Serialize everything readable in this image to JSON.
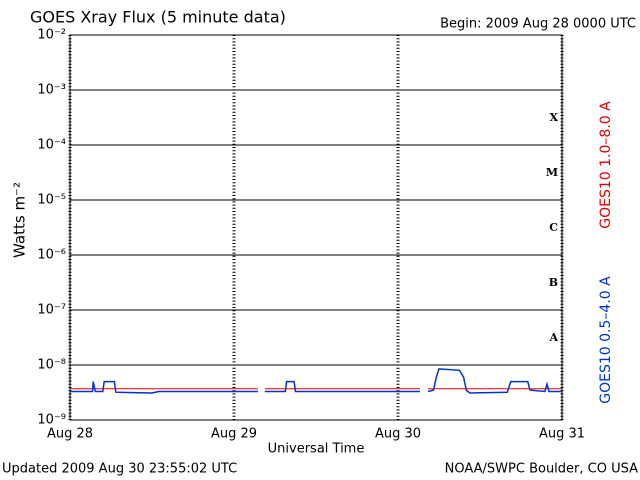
{
  "chart_data": {
    "type": "line",
    "title": "GOES Xray Flux (5 minute data)",
    "subtitle": "Begin:  2009 Aug 28 0000 UTC",
    "x_label": "Universal Time",
    "y_label": "Watts m⁻²",
    "footer_left": "Updated 2009 Aug 30 23:55:02 UTC",
    "footer_right": "NOAA/SWPC Boulder, CO USA",
    "log_y": true,
    "grid": true,
    "xlim": [
      0,
      72
    ],
    "xticks": [
      {
        "value": 0,
        "label": "Aug 28"
      },
      {
        "value": 24,
        "label": "Aug 29"
      },
      {
        "value": 48,
        "label": "Aug 30"
      },
      {
        "value": 72,
        "label": "Aug 31"
      }
    ],
    "ylim": [
      1e-09,
      0.01
    ],
    "yticks": [
      {
        "value": 1e-09,
        "label": "10⁻⁹"
      },
      {
        "value": 1e-08,
        "label": "10⁻⁸"
      },
      {
        "value": 1e-07,
        "label": "10⁻⁷"
      },
      {
        "value": 1e-06,
        "label": "10⁻⁶"
      },
      {
        "value": 1e-05,
        "label": "10⁻⁵"
      },
      {
        "value": 0.0001,
        "label": "10⁻⁴"
      },
      {
        "value": 0.001,
        "label": "10⁻³"
      },
      {
        "value": 0.01,
        "label": "10⁻²"
      }
    ],
    "flare_classes": [
      {
        "value": 1e-08,
        "label": "A"
      },
      {
        "value": 1e-07,
        "label": "B"
      },
      {
        "value": 1e-06,
        "label": "C"
      },
      {
        "value": 1e-05,
        "label": "M"
      },
      {
        "value": 0.0001,
        "label": "X"
      }
    ],
    "series": [
      {
        "name": "GOES10 1.0–8.0 A",
        "color": "#dd0000",
        "x": [
          0,
          27.5,
          28,
          28.5,
          51.2,
          51.8,
          52.4,
          72
        ],
        "values": [
          3.7e-09,
          3.7e-09,
          null,
          3.7e-09,
          3.7e-09,
          null,
          3.7e-09,
          3.7e-09
        ]
      },
      {
        "name": "GOES10 0.5–4.0 A",
        "color": "#0033cc",
        "x": [
          0,
          3.3,
          3.4,
          3.7,
          4.8,
          5.0,
          6.5,
          6.7,
          12,
          13,
          27.5,
          28,
          28.5,
          31.5,
          31.7,
          32.8,
          33,
          51.2,
          51.8,
          52.4,
          53.2,
          53.6,
          54,
          57,
          57.6,
          58,
          58.5,
          64,
          64.5,
          67,
          67.3,
          69.5,
          69.8,
          70.1,
          72
        ],
        "values": [
          3.3e-09,
          3.3e-09,
          5e-09,
          3.3e-09,
          3.3e-09,
          5e-09,
          5e-09,
          3.2e-09,
          3.1e-09,
          3.3e-09,
          3.3e-09,
          null,
          3.3e-09,
          3.3e-09,
          5e-09,
          5e-09,
          3.3e-09,
          3.3e-09,
          null,
          3.3e-09,
          3.5e-09,
          6e-09,
          8.5e-09,
          8e-09,
          6e-09,
          3.5e-09,
          3.1e-09,
          3.2e-09,
          5e-09,
          5e-09,
          3.5e-09,
          3.3e-09,
          4.5e-09,
          3.3e-09,
          3.3e-09
        ]
      }
    ]
  }
}
